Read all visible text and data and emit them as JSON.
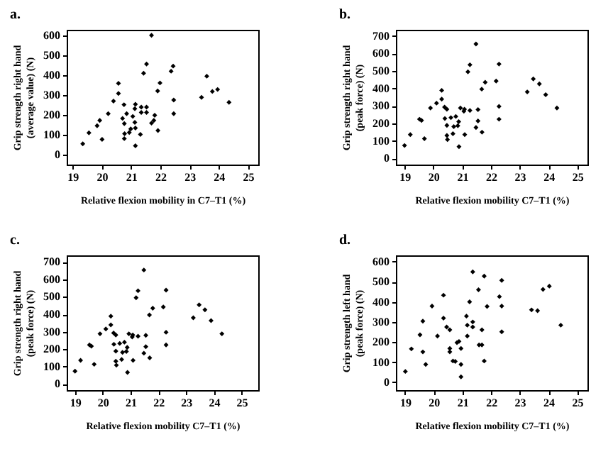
{
  "chart_data": [
    {
      "type": "scatter",
      "title": "a.",
      "xlabel": "Relative flexion mobility in C7–T1 (%)",
      "ylabel": "Grip strength right hand (average value) (N)",
      "xlim": [
        18.8,
        25.35
      ],
      "ylim": [
        -50,
        630
      ],
      "xticks": [
        19,
        20,
        21,
        22,
        23,
        24,
        25
      ],
      "yticks": [
        0,
        100,
        200,
        300,
        400,
        500,
        600
      ],
      "grid": false,
      "marker": "diamond",
      "series": [
        {
          "color": "#000000",
          "x": [
            19.35,
            19.56,
            19.84,
            19.93,
            20.01,
            20.22,
            20.4,
            20.57,
            20.57,
            20.76,
            20.71,
            20.77,
            20.78,
            20.77,
            20.85,
            20.94,
            20.99,
            21.06,
            21.13,
            21.15,
            21.13,
            21.15,
            21.15,
            21.32,
            21.35,
            21.35,
            21.53,
            21.53,
            21.43,
            21.53,
            21.7,
            21.7,
            21.78,
            21.81,
            21.91,
            21.92,
            21.99,
            22.37,
            22.44,
            22.46,
            22.46,
            23.41,
            23.59,
            23.78,
            23.96,
            24.35
          ],
          "values": [
            55,
            110,
            146,
            173,
            77,
            207,
            270,
            360,
            309,
            252,
            183,
            157,
            106,
            81,
            207,
            112,
            130,
            193,
            232,
            254,
            163,
            134,
            45,
            102,
            240,
            213,
            240,
            213,
            411,
            457,
            602,
            159,
            173,
            199,
            321,
            122,
            362,
            421,
            447,
            276,
            207,
            289,
            396,
            319,
            329,
            264
          ]
        }
      ]
    },
    {
      "type": "scatter",
      "title": "b.",
      "xlabel": "Relative flexion mobility C7–T1 (%)",
      "ylabel": "Grip strength right hand (peak force) (N)",
      "xlim": [
        18.7,
        25.35
      ],
      "ylim": [
        -35,
        735
      ],
      "xticks": [
        19,
        20,
        21,
        22,
        23,
        24,
        25
      ],
      "yticks": [
        0,
        100,
        200,
        300,
        400,
        500,
        600,
        700
      ],
      "grid": false,
      "marker": "diamond",
      "series": [
        {
          "color": "#000000",
          "x": [
            19.0,
            19.2,
            19.52,
            19.59,
            19.69,
            19.9,
            20.11,
            20.29,
            20.29,
            20.39,
            20.4,
            20.47,
            20.47,
            20.47,
            20.49,
            20.61,
            20.68,
            20.71,
            20.78,
            20.85,
            20.88,
            20.89,
            20.94,
            21.06,
            21.08,
            21.09,
            21.27,
            21.2,
            21.27,
            21.48,
            21.48,
            21.55,
            21.55,
            21.68,
            21.69,
            21.8,
            22.18,
            22.28,
            22.28,
            22.28,
            23.26,
            23.47,
            23.68,
            23.9,
            24.29
          ],
          "values": [
            74,
            136,
            224,
            217,
            113,
            288,
            316,
            389,
            339,
            293,
            228,
            281,
            189,
            131,
            108,
            233,
            141,
            182,
            240,
            187,
            210,
            67,
            288,
            270,
            281,
            136,
            274,
            495,
            535,
            654,
            177,
            279,
            214,
            396,
            150,
            435,
            442,
            539,
            297,
            224,
            380,
            454,
            426,
            364,
            288
          ]
        }
      ]
    },
    {
      "type": "scatter",
      "title": "c.",
      "xlabel": "Relative flexion mobility C7–T1 (%)",
      "ylabel": "Grip strength right hand (peak force) (N)",
      "xlim": [
        18.7,
        25.6
      ],
      "ylim": [
        -35,
        738
      ],
      "xticks": [
        19,
        20,
        21,
        22,
        23,
        24,
        25
      ],
      "yticks": [
        0,
        100,
        200,
        300,
        400,
        500,
        600,
        700
      ],
      "grid": false,
      "marker": "diamond",
      "series": [
        {
          "color": "#000000",
          "x": [
            19.0,
            19.2,
            19.52,
            19.59,
            19.69,
            19.9,
            20.11,
            20.29,
            20.29,
            20.39,
            20.4,
            20.47,
            20.47,
            20.47,
            20.49,
            20.61,
            20.68,
            20.71,
            20.78,
            20.85,
            20.88,
            20.89,
            20.94,
            21.06,
            21.08,
            21.09,
            21.27,
            21.2,
            21.27,
            21.48,
            21.48,
            21.55,
            21.55,
            21.68,
            21.69,
            21.8,
            22.18,
            22.28,
            22.28,
            22.28,
            23.26,
            23.47,
            23.68,
            23.9,
            24.29
          ],
          "values": [
            74,
            136,
            224,
            217,
            113,
            288,
            316,
            389,
            339,
            293,
            228,
            281,
            189,
            131,
            108,
            233,
            141,
            182,
            240,
            187,
            210,
            67,
            288,
            270,
            281,
            136,
            274,
            495,
            535,
            654,
            177,
            279,
            214,
            396,
            150,
            435,
            442,
            539,
            297,
            224,
            380,
            454,
            426,
            364,
            288
          ]
        }
      ]
    },
    {
      "type": "scatter",
      "title": "d.",
      "xlabel": "Relative flexion mobility C7–T1 (%)",
      "ylabel": "Grip strength left hand (peak force) (N)",
      "xlim": [
        18.68,
        25.36
      ],
      "ylim": [
        -39,
        631
      ],
      "xticks": [
        19,
        20,
        21,
        22,
        23,
        24,
        25
      ],
      "yticks": [
        0,
        100,
        200,
        300,
        400,
        500,
        600
      ],
      "grid": false,
      "marker": "diamond",
      "series": [
        {
          "color": "#000000",
          "x": [
            19.01,
            19.22,
            19.52,
            19.62,
            19.62,
            19.72,
            19.94,
            20.13,
            20.34,
            20.34,
            20.45,
            20.56,
            20.56,
            20.56,
            20.67,
            20.75,
            20.81,
            20.88,
            20.95,
            20.95,
            20.95,
            21.14,
            21.17,
            21.17,
            21.25,
            21.36,
            21.36,
            21.36,
            21.56,
            21.58,
            21.68,
            21.68,
            21.76,
            21.76,
            21.86,
            22.29,
            22.37,
            22.37,
            22.37,
            23.41,
            23.62,
            23.81,
            24.03,
            24.43
          ],
          "values": [
            54,
            166,
            236,
            304,
            151,
            89,
            379,
            230,
            433,
            319,
            275,
            261,
            168,
            151,
            106,
            104,
            197,
            203,
            168,
            89,
            27,
            329,
            230,
            284,
            400,
            300,
            275,
            549,
            460,
            186,
            186,
            261,
            528,
            106,
            377,
            426,
            507,
            379,
            251,
            360,
            356,
            462,
            478,
            284
          ]
        }
      ]
    }
  ]
}
